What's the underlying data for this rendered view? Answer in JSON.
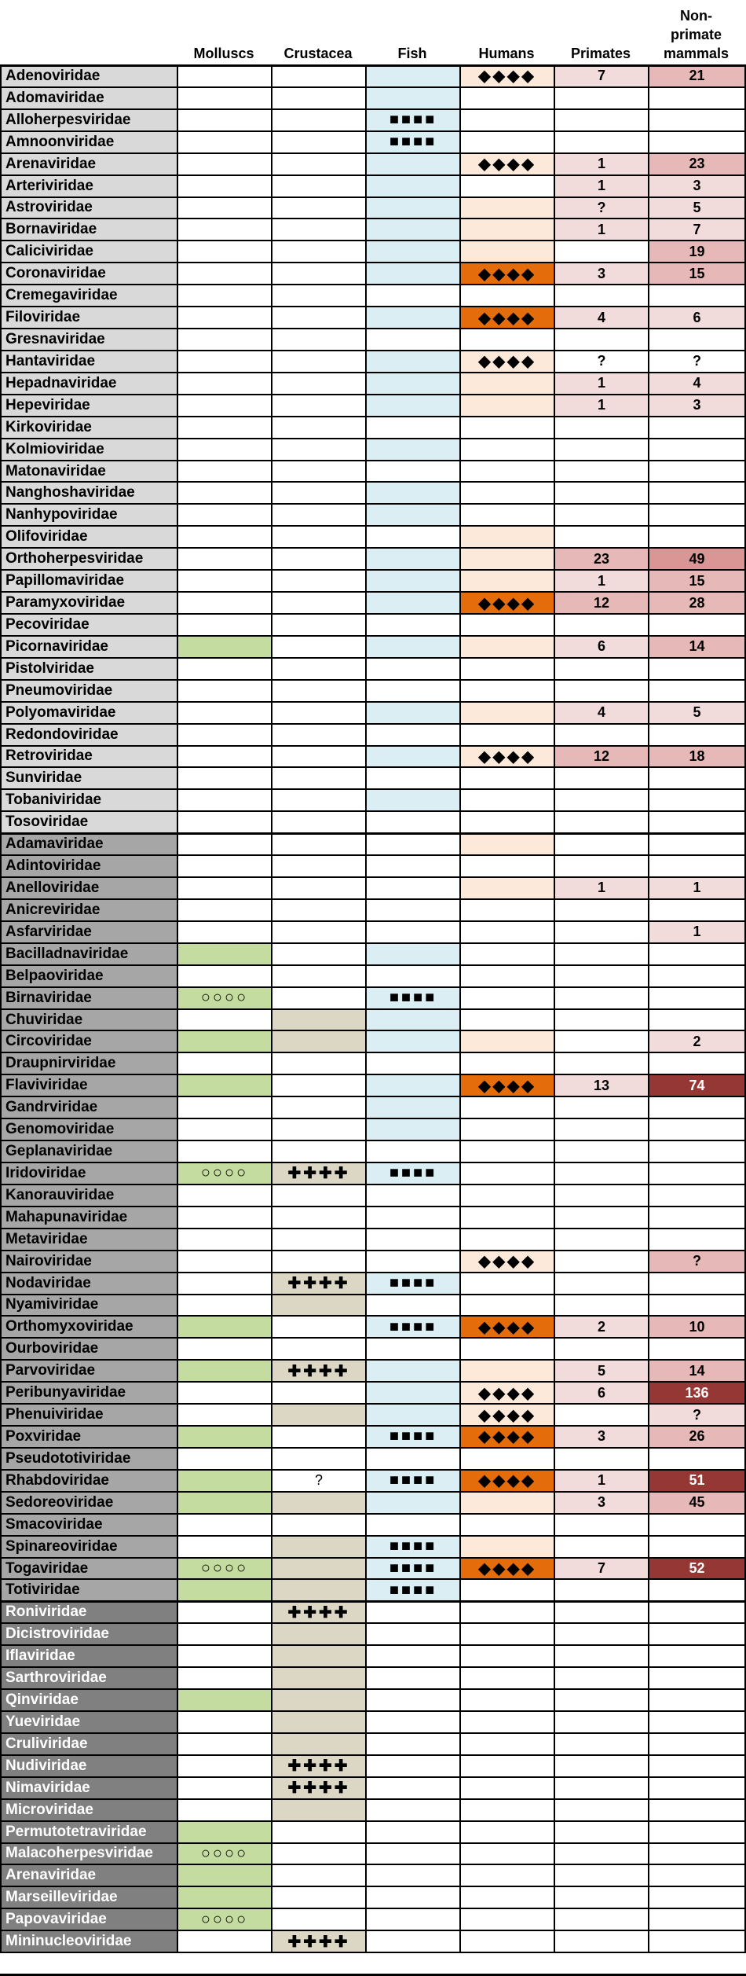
{
  "columns": [
    "",
    "Molluscs",
    "Crustacea",
    "Fish",
    "Humans",
    "Primates",
    "Non-\nprimate\nmammals"
  ],
  "colors": {
    "group_a": "#d9d9d9",
    "group_b": "#a6a6a6",
    "group_c": "#808080",
    "mollusc": "#c5dca0",
    "crustacea": "#dbd7c4",
    "fish": "#dbeef4",
    "human_light": "#fde9d9",
    "human_strong": "#e46c0a",
    "pri_light": "#f2dcdb",
    "pri_med": "#e6b8b7",
    "pri_strong": "#d99694",
    "pri_dark": "#953734"
  },
  "symbols": {
    "mollusc": "○○○○",
    "crustacea": "✚✚✚✚",
    "fish": "■■■■",
    "human": "◆◆◆◆"
  },
  "rows": [
    [
      "Adenoviridae",
      "a",
      "",
      "",
      "f",
      "H",
      "7p",
      "21b"
    ],
    [
      "Adomaviridae",
      "a",
      "",
      "",
      "f",
      "",
      "",
      ""
    ],
    [
      "Alloherpesviridae",
      "a",
      "",
      "",
      "F",
      "",
      "",
      ""
    ],
    [
      "Amnoonviridae",
      "a",
      "",
      "",
      "F",
      "",
      "",
      ""
    ],
    [
      "Arenaviridae",
      "a",
      "",
      "",
      "f",
      "H",
      "1p",
      "23b"
    ],
    [
      "Arteriviridae",
      "a",
      "",
      "",
      "f",
      "",
      "1p",
      "3p"
    ],
    [
      "Astroviridae",
      "a",
      "",
      "",
      "f",
      "h",
      "?p",
      "5p"
    ],
    [
      "Bornaviridae",
      "a",
      "",
      "",
      "f",
      "h",
      "1p",
      "7p"
    ],
    [
      "Caliciviridae",
      "a",
      "",
      "",
      "f",
      "h",
      "",
      "19b"
    ],
    [
      "Coronaviridae",
      "a",
      "",
      "",
      "f",
      "S",
      "3p",
      "15b"
    ],
    [
      "Cremegaviridae",
      "a",
      "",
      "",
      "",
      "",
      "",
      ""
    ],
    [
      "Filoviridae",
      "a",
      "",
      "",
      "f",
      "S",
      "4p",
      "6p"
    ],
    [
      "Gresnaviridae",
      "a",
      "",
      "",
      "",
      "",
      "",
      ""
    ],
    [
      "Hantaviridae",
      "a",
      "",
      "",
      "f",
      "H",
      "?",
      "?"
    ],
    [
      "Hepadnaviridae",
      "a",
      "",
      "",
      "f",
      "h",
      "1p",
      "4p"
    ],
    [
      "Hepeviridae",
      "a",
      "",
      "",
      "f",
      "h",
      "1p",
      "3p"
    ],
    [
      "Kirkoviridae",
      "a",
      "",
      "",
      "",
      "",
      "",
      ""
    ],
    [
      "Kolmioviridae",
      "a",
      "",
      "",
      "f",
      "",
      "",
      ""
    ],
    [
      "Matonaviridae",
      "a",
      "",
      "",
      "",
      "",
      "",
      ""
    ],
    [
      "Nanghoshaviridae",
      "a",
      "",
      "",
      "f",
      "",
      "",
      ""
    ],
    [
      "Nanhypoviridae",
      "a",
      "",
      "",
      "f",
      "",
      "",
      ""
    ],
    [
      "Olifoviridae",
      "a",
      "",
      "",
      "",
      "h",
      "",
      ""
    ],
    [
      "Orthoherpesviridae",
      "a",
      "",
      "",
      "f",
      "h",
      "23b",
      "49c"
    ],
    [
      "Papillomaviridae",
      "a",
      "",
      "",
      "f",
      "h",
      "1p",
      "15b"
    ],
    [
      "Paramyxoviridae",
      "a",
      "",
      "",
      "f",
      "S",
      "12b",
      "28b"
    ],
    [
      "Pecoviridae",
      "a",
      "",
      "",
      "",
      "",
      "",
      ""
    ],
    [
      "Picornaviridae",
      "a",
      "m",
      "",
      "f",
      "h",
      "6p",
      "14b"
    ],
    [
      "Pistolviridae",
      "a",
      "",
      "",
      "",
      "",
      "",
      ""
    ],
    [
      "Pneumoviridae",
      "a",
      "",
      "",
      "",
      "",
      "",
      ""
    ],
    [
      "Polyomaviridae",
      "a",
      "",
      "",
      "f",
      "h",
      "4p",
      "5p"
    ],
    [
      "Redondoviridae",
      "a",
      "",
      "",
      "",
      "",
      "",
      ""
    ],
    [
      "Retroviridae",
      "a",
      "",
      "",
      "f",
      "H",
      "12b",
      "18b"
    ],
    [
      "Sunviridae",
      "a",
      "",
      "",
      "",
      "",
      "",
      ""
    ],
    [
      "Tobaniviridae",
      "a",
      "",
      "",
      "f",
      "",
      "",
      ""
    ],
    [
      "Tosoviridae",
      "a",
      "",
      "",
      "",
      "",
      "",
      ""
    ],
    [
      "Adamaviridae",
      "b",
      "",
      "",
      "",
      "h",
      "",
      ""
    ],
    [
      "Adintoviridae",
      "b",
      "",
      "",
      "",
      "",
      "",
      ""
    ],
    [
      "Anelloviridae",
      "b",
      "",
      "",
      "",
      "h",
      "1p",
      "1p"
    ],
    [
      "Anicreviridae",
      "b",
      "",
      "",
      "",
      "",
      "",
      ""
    ],
    [
      "Asfarviridae",
      "b",
      "",
      "",
      "",
      "",
      "",
      "1p"
    ],
    [
      "Bacilladnaviridae",
      "b",
      "m",
      "",
      "f",
      "",
      "",
      ""
    ],
    [
      "Belpaoviridae",
      "b",
      "",
      "",
      "",
      "",
      "",
      ""
    ],
    [
      "Birnaviridae",
      "b",
      "M",
      "",
      "F",
      "",
      "",
      ""
    ],
    [
      "Chuviridae",
      "b",
      "",
      "c",
      "f",
      "",
      "",
      ""
    ],
    [
      "Circoviridae",
      "b",
      "m",
      "c",
      "f",
      "h",
      "",
      "2p"
    ],
    [
      "Draupnirviridae",
      "b",
      "",
      "",
      "",
      "",
      "",
      ""
    ],
    [
      "Flaviviridae",
      "b",
      "m",
      "",
      "f",
      "S",
      "13p",
      "74d"
    ],
    [
      "Gandrviridae",
      "b",
      "",
      "",
      "f",
      "",
      "",
      ""
    ],
    [
      "Genomoviridae",
      "b",
      "",
      "",
      "f",
      "",
      "",
      ""
    ],
    [
      "Geplanaviridae",
      "b",
      "",
      "",
      "",
      "",
      "",
      ""
    ],
    [
      "Iridoviridae",
      "b",
      "M",
      "C",
      "F",
      "",
      "",
      ""
    ],
    [
      "Kanorauviridae",
      "b",
      "",
      "",
      "",
      "",
      "",
      ""
    ],
    [
      "Mahapunaviridae",
      "b",
      "",
      "",
      "",
      "",
      "",
      ""
    ],
    [
      "Metaviridae",
      "b",
      "",
      "",
      "",
      "",
      "",
      ""
    ],
    [
      "Nairoviridae",
      "b",
      "",
      "",
      "",
      "H",
      "",
      "?b"
    ],
    [
      "Nodaviridae",
      "b",
      "",
      "C",
      "F",
      "",
      "",
      ""
    ],
    [
      "Nyamiviridae",
      "b",
      "",
      "c",
      "",
      "",
      "",
      ""
    ],
    [
      "Orthomyxoviridae",
      "b",
      "m",
      "",
      "F",
      "S",
      "2p",
      "10b"
    ],
    [
      "Ourboviridae",
      "b",
      "",
      "",
      "",
      "",
      "",
      ""
    ],
    [
      "Parvoviridae",
      "b",
      "m",
      "C",
      "f",
      "h",
      "5p",
      "14b"
    ],
    [
      "Peribunyaviridae",
      "b",
      "",
      "",
      "f",
      "H",
      "6p",
      "136d"
    ],
    [
      "Phenuiviridae",
      "b",
      "",
      "c",
      "f",
      "H",
      "",
      "?p"
    ],
    [
      "Poxviridae",
      "b",
      "m",
      "",
      "F",
      "S",
      "3p",
      "26b"
    ],
    [
      "Pseudototiviridae",
      "b",
      "",
      "",
      "",
      "",
      "",
      ""
    ],
    [
      "Rhabdoviridae",
      "b",
      "m",
      "?",
      "F",
      "S",
      "1p",
      "51d"
    ],
    [
      "Sedoreoviridae",
      "b",
      "m",
      "c",
      "f",
      "h",
      "3p",
      "45b"
    ],
    [
      "Smacoviridae",
      "b",
      "",
      "",
      "",
      "",
      "",
      ""
    ],
    [
      "Spinareoviridae",
      "b",
      "",
      "c",
      "F",
      "h",
      "",
      ""
    ],
    [
      "Togaviridae",
      "b",
      "M",
      "c",
      "F",
      "S",
      "7p",
      "52d"
    ],
    [
      "Totiviridae",
      "b",
      "m",
      "c",
      "F",
      "",
      "",
      ""
    ],
    [
      "Roniviridae",
      "c",
      "",
      "C",
      "",
      "",
      "",
      ""
    ],
    [
      "Dicistroviridae",
      "c",
      "",
      "c",
      "",
      "",
      "",
      ""
    ],
    [
      "Iflaviridae",
      "c",
      "",
      "c",
      "",
      "",
      "",
      ""
    ],
    [
      "Sarthroviridae",
      "c",
      "",
      "c",
      "",
      "",
      "",
      ""
    ],
    [
      "Qinviridae",
      "c",
      "m",
      "c",
      "",
      "",
      "",
      ""
    ],
    [
      "Yueviridae",
      "c",
      "",
      "c",
      "",
      "",
      "",
      ""
    ],
    [
      "Cruliviridae",
      "c",
      "",
      "c",
      "",
      "",
      "",
      ""
    ],
    [
      "Nudiviridae",
      "c",
      "",
      "C",
      "",
      "",
      "",
      ""
    ],
    [
      "Nimaviridae",
      "c",
      "",
      "C",
      "",
      "",
      "",
      ""
    ],
    [
      "Microviridae",
      "c",
      "",
      "c",
      "",
      "",
      "",
      ""
    ],
    [
      "Permutotetraviridae",
      "c",
      "m",
      "",
      "",
      "",
      "",
      ""
    ],
    [
      "Malacoherpesviridae",
      "c",
      "M",
      "",
      "",
      "",
      "",
      ""
    ],
    [
      "Arenaviridae",
      "c",
      "m",
      "",
      "",
      "",
      "",
      ""
    ],
    [
      "Marseilleviridae",
      "c",
      "m",
      "",
      "",
      "",
      "",
      ""
    ],
    [
      "Papovaviridae",
      "c",
      "M",
      "",
      "",
      "",
      "",
      ""
    ],
    [
      "Mininucleoviridae",
      "c",
      "",
      "C",
      "",
      "",
      "",
      ""
    ]
  ]
}
